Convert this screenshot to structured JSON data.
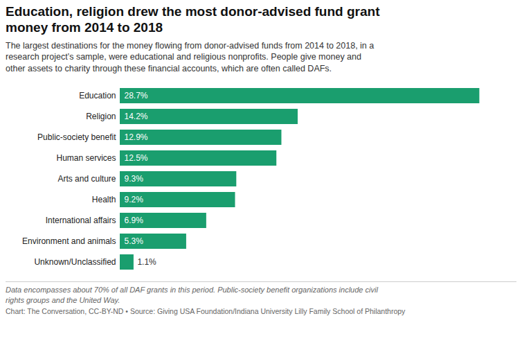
{
  "chart_data": {
    "type": "bar",
    "orientation": "horizontal",
    "title": "Education, religion drew the most donor-advised fund grant\nmoney from 2014 to 2018",
    "subtitle": "The largest destinations for the money flowing from donor-advised funds from 2014 to 2018, in a\nresearch project’s sample, were educational and religious nonprofits. People give money and\nother assets to charity through these financial accounts, which are often called DAFs.",
    "annotations": [
      "Data encompasses about 70% of all DAF grants in this period. Public-society benefit organizations include civil\nrights groups and the United Way.",
      "Chart: The Conversation, CC-BY-ND • Source: Giving USA Foundation/Indiana University Lilly Family School of Philanthropy"
    ],
    "categories": [
      "Education",
      "Religion",
      "Public-society benefit",
      "Human services",
      "Arts and culture",
      "Health",
      "International affairs",
      "Environment and animals",
      "Unknown/Unclassified"
    ],
    "values": [
      28.7,
      14.2,
      12.9,
      12.5,
      9.3,
      9.2,
      6.9,
      5.3,
      1.1
    ],
    "value_labels": [
      "28.7%",
      "14.2%",
      "12.9%",
      "12.5%",
      "9.3%",
      "9.2%",
      "6.9%",
      "5.3%",
      "1.1%"
    ],
    "color": "#1a9e6e",
    "xlim": [
      0,
      31
    ],
    "grid": false,
    "data_labels": true,
    "tick_labels": "y"
  }
}
